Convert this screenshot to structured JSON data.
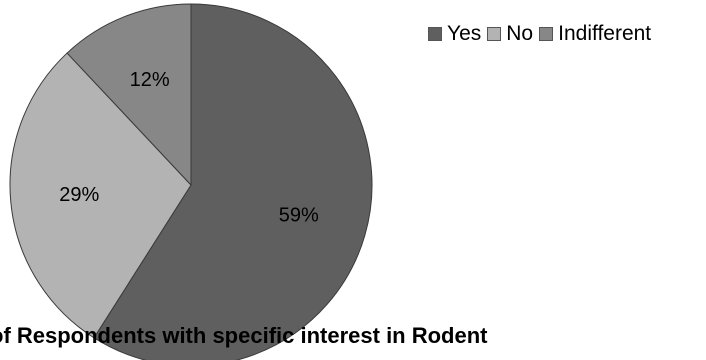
{
  "chart_data": {
    "type": "pie",
    "title": "of Respondents with specific interest in Rodent",
    "categories": [
      "Yes",
      "No",
      "Indifferent"
    ],
    "values": [
      59,
      29,
      12
    ],
    "value_labels": [
      "59%",
      "29%",
      "12%"
    ],
    "colors": [
      "#5f5f5f",
      "#b3b3b3",
      "#878787"
    ],
    "start_angle_deg": 0,
    "direction": "clockwise",
    "legend": {
      "position": "top-right",
      "entries": [
        "Yes",
        "No",
        "Indifferent"
      ]
    }
  }
}
